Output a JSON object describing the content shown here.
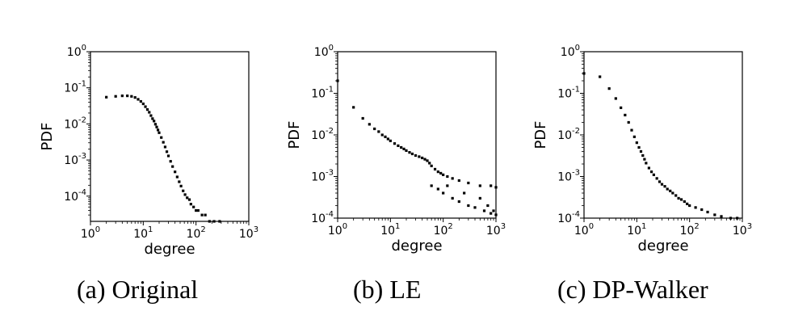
{
  "captions": [
    "(a) Original",
    "(b) LE",
    "(c) DP-Walker"
  ],
  "chart_data": [
    {
      "type": "scatter",
      "title": "",
      "xlabel": "degree",
      "ylabel": "PDF",
      "xscale": "log",
      "yscale": "log",
      "xlim": [
        1,
        1000
      ],
      "ylim": [
        2e-05,
        1
      ],
      "x_ticks": [
        {
          "base": "10",
          "exp": "0"
        },
        {
          "base": "10",
          "exp": "1"
        },
        {
          "base": "10",
          "exp": "2"
        },
        {
          "base": "10",
          "exp": "3"
        }
      ],
      "y_ticks": [
        {
          "value": 1,
          "base": "10",
          "exp": "0"
        },
        {
          "value": 0.1,
          "base": "10",
          "exp": "-1"
        },
        {
          "value": 0.01,
          "base": "10",
          "exp": "-2"
        },
        {
          "value": 0.001,
          "base": "10",
          "exp": "-3"
        },
        {
          "value": 0.0001,
          "base": "10",
          "exp": "-4"
        }
      ],
      "series": [
        {
          "color": "#000000",
          "points": [
            [
              2,
              0.055
            ],
            [
              3,
              0.058
            ],
            [
              4,
              0.06
            ],
            [
              5,
              0.06
            ],
            [
              6,
              0.058
            ],
            [
              7,
              0.054
            ],
            [
              8,
              0.048
            ],
            [
              9,
              0.042
            ],
            [
              10,
              0.036
            ],
            [
              11,
              0.03
            ],
            [
              12,
              0.025
            ],
            [
              13,
              0.021
            ],
            [
              14,
              0.017
            ],
            [
              15,
              0.014
            ],
            [
              16,
              0.012
            ],
            [
              17,
              0.0098
            ],
            [
              18,
              0.0082
            ],
            [
              19,
              0.0068
            ],
            [
              20,
              0.0057
            ],
            [
              22,
              0.0042
            ],
            [
              24,
              0.0031
            ],
            [
              26,
              0.0023
            ],
            [
              28,
              0.0017
            ],
            [
              30,
              0.0013
            ],
            [
              33,
              0.00092
            ],
            [
              36,
              0.00066
            ],
            [
              40,
              0.00047
            ],
            [
              44,
              0.00034
            ],
            [
              48,
              0.00025
            ],
            [
              52,
              0.00019
            ],
            [
              57,
              0.00014
            ],
            [
              62,
              0.00011
            ],
            [
              68,
              9e-05
            ],
            [
              75,
              8e-05
            ],
            [
              80,
              6e-05
            ],
            [
              90,
              5e-05
            ],
            [
              100,
              4e-05
            ],
            [
              110,
              4e-05
            ],
            [
              130,
              3e-05
            ],
            [
              150,
              3e-05
            ],
            [
              180,
              2e-05
            ],
            [
              220,
              2e-05
            ],
            [
              280,
              2e-05
            ]
          ]
        }
      ]
    },
    {
      "type": "scatter",
      "title": "",
      "xlabel": "degree",
      "ylabel": "PDF",
      "xscale": "log",
      "yscale": "log",
      "xlim": [
        1,
        1000
      ],
      "ylim": [
        0.0001,
        1
      ],
      "x_ticks": [
        {
          "base": "10",
          "exp": "0"
        },
        {
          "base": "10",
          "exp": "1"
        },
        {
          "base": "10",
          "exp": "2"
        },
        {
          "base": "10",
          "exp": "3"
        }
      ],
      "y_ticks": [
        {
          "value": 1,
          "base": "10",
          "exp": "0"
        },
        {
          "value": 0.1,
          "base": "10",
          "exp": "-1"
        },
        {
          "value": 0.01,
          "base": "10",
          "exp": "-2"
        },
        {
          "value": 0.001,
          "base": "10",
          "exp": "-3"
        },
        {
          "value": 0.0001,
          "base": "10",
          "exp": "-4"
        }
      ],
      "series": [
        {
          "color": "#000000",
          "points": [
            [
              1,
              0.2
            ],
            [
              2,
              0.046
            ],
            [
              3,
              0.025
            ],
            [
              4,
              0.018
            ],
            [
              5,
              0.014
            ],
            [
              6,
              0.012
            ],
            [
              7,
              0.01
            ],
            [
              8,
              0.009
            ],
            [
              9,
              0.008
            ],
            [
              10,
              0.0072
            ],
            [
              12,
              0.0062
            ],
            [
              14,
              0.0055
            ],
            [
              16,
              0.005
            ],
            [
              18,
              0.0046
            ],
            [
              20,
              0.0042
            ],
            [
              23,
              0.0038
            ],
            [
              26,
              0.0035
            ],
            [
              30,
              0.0032
            ],
            [
              35,
              0.003
            ],
            [
              40,
              0.0028
            ],
            [
              45,
              0.0026
            ],
            [
              50,
              0.0024
            ],
            [
              55,
              0.0021
            ],
            [
              60,
              0.0018
            ],
            [
              70,
              0.0015
            ],
            [
              80,
              0.0013
            ],
            [
              90,
              0.0012
            ],
            [
              100,
              0.0011
            ],
            [
              120,
              0.001
            ],
            [
              150,
              0.0009
            ],
            [
              200,
              0.0008
            ],
            [
              300,
              0.0007
            ],
            [
              500,
              0.0006
            ],
            [
              800,
              0.0006
            ],
            [
              1000,
              0.00055
            ],
            [
              60,
              0.0006
            ],
            [
              80,
              0.0005
            ],
            [
              100,
              0.0004
            ],
            [
              150,
              0.0003
            ],
            [
              200,
              0.00025
            ],
            [
              300,
              0.0002
            ],
            [
              400,
              0.00018
            ],
            [
              600,
              0.00015
            ],
            [
              800,
              0.00013
            ],
            [
              1000,
              0.00012
            ],
            [
              120,
              0.0006
            ],
            [
              250,
              0.0004
            ],
            [
              500,
              0.0003
            ],
            [
              700,
              0.0002
            ],
            [
              900,
              0.00015
            ]
          ]
        }
      ]
    },
    {
      "type": "scatter",
      "title": "",
      "xlabel": "degree",
      "ylabel": "PDF",
      "xscale": "log",
      "yscale": "log",
      "xlim": [
        1,
        1000
      ],
      "ylim": [
        0.0001,
        1
      ],
      "x_ticks": [
        {
          "base": "10",
          "exp": "0"
        },
        {
          "base": "10",
          "exp": "1"
        },
        {
          "base": "10",
          "exp": "2"
        },
        {
          "base": "10",
          "exp": "3"
        }
      ],
      "y_ticks": [
        {
          "value": 1,
          "base": "10",
          "exp": "0"
        },
        {
          "value": 0.1,
          "base": "10",
          "exp": "-1"
        },
        {
          "value": 0.01,
          "base": "10",
          "exp": "-2"
        },
        {
          "value": 0.001,
          "base": "10",
          "exp": "-3"
        },
        {
          "value": 0.0001,
          "base": "10",
          "exp": "-4"
        }
      ],
      "series": [
        {
          "color": "#000000",
          "points": [
            [
              1,
              0.3
            ],
            [
              2,
              0.25
            ],
            [
              3,
              0.13
            ],
            [
              4,
              0.075
            ],
            [
              5,
              0.045
            ],
            [
              6,
              0.03
            ],
            [
              7,
              0.02
            ],
            [
              8,
              0.013
            ],
            [
              9,
              0.009
            ],
            [
              10,
              0.0065
            ],
            [
              11,
              0.005
            ],
            [
              12,
              0.004
            ],
            [
              13,
              0.0032
            ],
            [
              14,
              0.0026
            ],
            [
              15,
              0.0021
            ],
            [
              17,
              0.0016
            ],
            [
              19,
              0.0013
            ],
            [
              21,
              0.0011
            ],
            [
              24,
              0.0009
            ],
            [
              27,
              0.00075
            ],
            [
              30,
              0.00065
            ],
            [
              34,
              0.00058
            ],
            [
              38,
              0.0005
            ],
            [
              43,
              0.00045
            ],
            [
              48,
              0.0004
            ],
            [
              55,
              0.00035
            ],
            [
              62,
              0.0003
            ],
            [
              70,
              0.00028
            ],
            [
              80,
              0.00025
            ],
            [
              90,
              0.00022
            ],
            [
              100,
              0.0002
            ],
            [
              130,
              0.00018
            ],
            [
              170,
              0.00016
            ],
            [
              220,
              0.00014
            ],
            [
              300,
              0.00012
            ],
            [
              400,
              0.00011
            ],
            [
              600,
              0.0001
            ],
            [
              800,
              0.0001
            ]
          ]
        }
      ]
    }
  ]
}
